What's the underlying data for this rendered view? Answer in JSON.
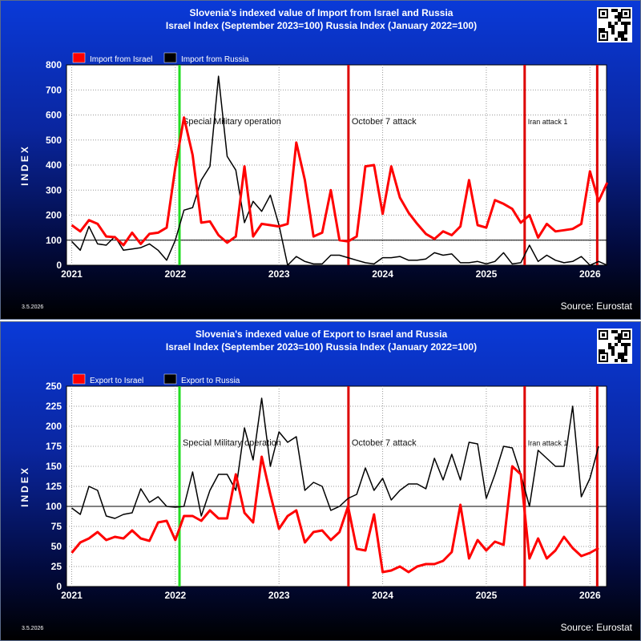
{
  "colors": {
    "israel": "#ff0000",
    "russia": "#000000",
    "smo_line": "#22dd22",
    "event_line": "#dd0000",
    "reference": "#000000"
  },
  "icons": {
    "qr": "qr-code-icon"
  },
  "chart_data": [
    {
      "type": "line",
      "title": "Slovenia's indexed value of Import from Israel and Russia",
      "subtitle": "Israel Index (September 2023=100) Russia Index (January 2022=100)",
      "ylabel": "INDEX",
      "xlabel": "",
      "ylim": [
        0,
        800
      ],
      "yticks": [
        0,
        100,
        200,
        300,
        400,
        500,
        600,
        700,
        800
      ],
      "xlim": [
        2020.95,
        2026.16
      ],
      "xticks": [
        2021,
        2022,
        2023,
        2024,
        2025,
        2026
      ],
      "grid": true,
      "legend_position": "top-left",
      "reference_line": 100,
      "source": "Source: Eurostat",
      "date": "3.5.2026",
      "annotations": [
        {
          "label": "Special Military operation",
          "x": 2022.04,
          "color": "green"
        },
        {
          "label": "October 7 attack",
          "x": 2023.67,
          "color": "red"
        },
        {
          "label": "Iran attack 1",
          "x": 2025.37,
          "color": "red"
        },
        {
          "label": "",
          "x": 2026.07,
          "color": "red"
        }
      ],
      "x_start": 2021.0,
      "x_step": 0.08333,
      "series": [
        {
          "name": "Import from Israel",
          "color": "#ff0000",
          "width": 3,
          "values": [
            160,
            135,
            180,
            165,
            115,
            112,
            80,
            130,
            85,
            125,
            130,
            150,
            390,
            590,
            440,
            170,
            175,
            120,
            90,
            115,
            395,
            115,
            165,
            160,
            155,
            165,
            490,
            340,
            115,
            130,
            300,
            100,
            95,
            115,
            395,
            400,
            205,
            395,
            270,
            210,
            165,
            125,
            105,
            135,
            120,
            155,
            340,
            160,
            150,
            260,
            245,
            225,
            170,
            200,
            110,
            165,
            135,
            140,
            145,
            165,
            375,
            255,
            330
          ]
        },
        {
          "name": "Import from Russia",
          "color": "#000000",
          "width": 1.5,
          "values": [
            95,
            60,
            155,
            85,
            80,
            115,
            60,
            65,
            70,
            85,
            60,
            20,
            100,
            220,
            230,
            340,
            395,
            755,
            435,
            380,
            170,
            255,
            215,
            280,
            160,
            0,
            35,
            15,
            5,
            5,
            40,
            40,
            30,
            20,
            10,
            5,
            30,
            30,
            35,
            20,
            20,
            25,
            50,
            40,
            45,
            10,
            10,
            15,
            5,
            15,
            50,
            5,
            10,
            80,
            15,
            40,
            20,
            10,
            15,
            35,
            0,
            15,
            0
          ]
        }
      ]
    },
    {
      "type": "line",
      "title": "Slovenia's indexed value of Export to Israel and Russia",
      "subtitle": "Israel Index (September 2023=100) Russia Index (January 2022=100)",
      "ylabel": "INDEX",
      "xlabel": "",
      "ylim": [
        0,
        250
      ],
      "yticks": [
        0,
        25,
        50,
        75,
        100,
        125,
        150,
        175,
        200,
        225,
        250
      ],
      "xlim": [
        2020.95,
        2026.16
      ],
      "xticks": [
        2021,
        2022,
        2023,
        2024,
        2025,
        2026
      ],
      "grid": true,
      "legend_position": "top-left",
      "reference_line": 100,
      "source": "Source: Eurostat",
      "date": "3.5.2026",
      "annotations": [
        {
          "label": "Special Military operation",
          "x": 2022.04,
          "color": "green"
        },
        {
          "label": "October 7 attack",
          "x": 2023.67,
          "color": "red"
        },
        {
          "label": "Iran attack 1",
          "x": 2025.37,
          "color": "red"
        },
        {
          "label": "",
          "x": 2026.07,
          "color": "red"
        }
      ],
      "x_start": 2021.0,
      "x_step": 0.08333,
      "series": [
        {
          "name": "Export to Israel",
          "color": "#ff0000",
          "width": 3,
          "values": [
            42,
            55,
            60,
            68,
            58,
            62,
            60,
            70,
            60,
            57,
            80,
            82,
            58,
            88,
            88,
            82,
            95,
            85,
            85,
            140,
            92,
            80,
            162,
            115,
            72,
            88,
            95,
            55,
            68,
            70,
            58,
            68,
            100,
            47,
            45,
            90,
            18,
            20,
            25,
            18,
            25,
            28,
            28,
            32,
            43,
            102,
            35,
            58,
            45,
            56,
            52,
            150,
            140,
            35,
            60,
            35,
            45,
            62,
            48,
            38,
            42,
            48
          ]
        },
        {
          "name": "Export to Russia",
          "color": "#000000",
          "width": 1.5,
          "values": [
            98,
            90,
            125,
            120,
            88,
            85,
            90,
            92,
            122,
            105,
            112,
            100,
            99,
            100,
            143,
            88,
            120,
            140,
            140,
            120,
            198,
            158,
            235,
            150,
            193,
            180,
            187,
            120,
            130,
            125,
            95,
            100,
            110,
            115,
            148,
            120,
            135,
            108,
            120,
            128,
            128,
            122,
            160,
            133,
            165,
            133,
            180,
            178,
            110,
            140,
            175,
            173,
            140,
            100,
            170,
            160,
            150,
            150,
            225,
            112,
            135,
            175
          ]
        }
      ]
    }
  ]
}
